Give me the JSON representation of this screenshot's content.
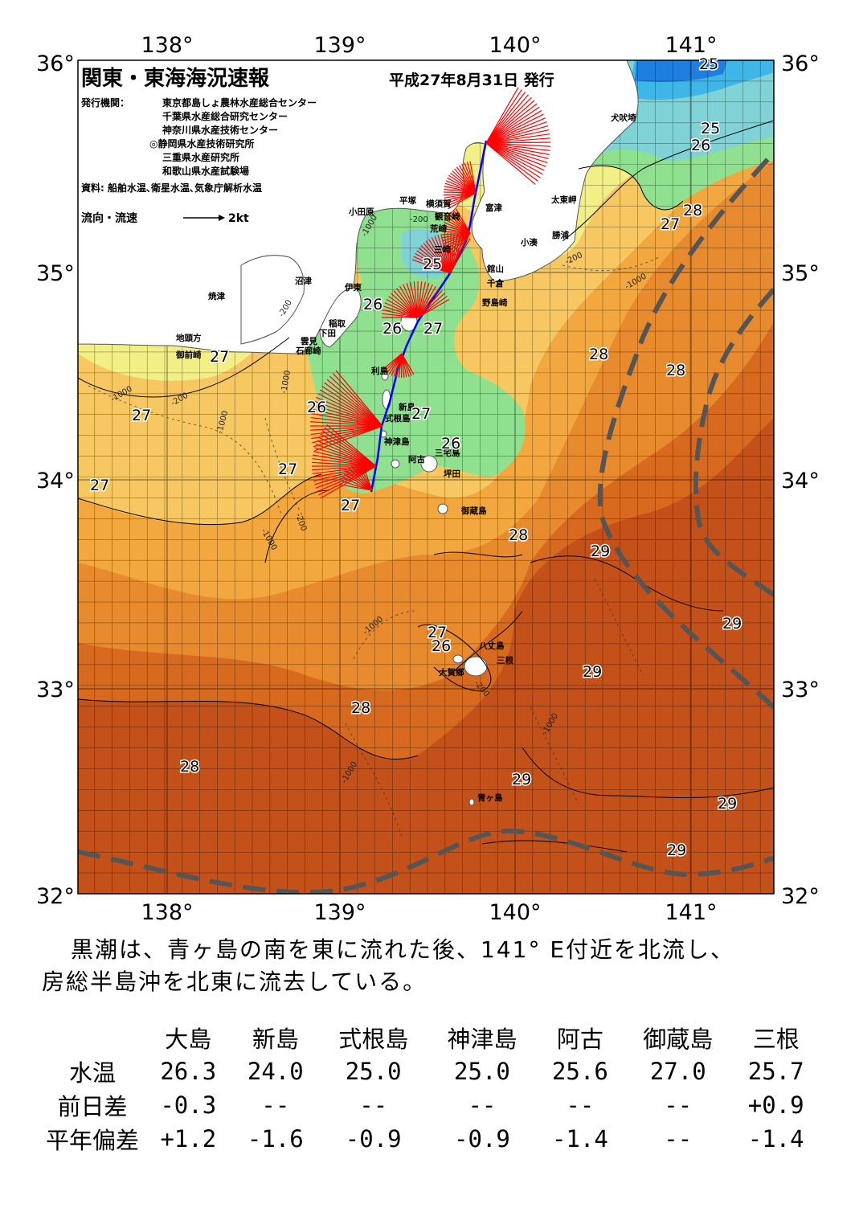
{
  "title": "関東・東海海況速報",
  "date": "平成27年8月31日 発行",
  "publisher": {
    "label": "発行機関：",
    "orgs": [
      "東京都島しょ農林水産総合センター",
      "千葉県水産総合研究センター",
      "神奈川県水産技術センター",
      "◎静岡県水産技術研究所",
      "三重県水産研究所",
      "和歌山県水産試験場"
    ]
  },
  "source": "資料: 船舶水温､衛星水温､気象庁解析水温",
  "legend": {
    "label": "流向・流速",
    "scale": "2kt"
  },
  "axes": {
    "lon": [
      "138°",
      "139°",
      "140°",
      "141°"
    ],
    "lat": [
      "36°",
      "35°",
      "34°",
      "33°",
      "32°"
    ]
  },
  "colors": {
    "sst_23": "#1f7fe0",
    "sst_24": "#3fb6e8",
    "sst_25": "#7fd3d6",
    "sst_26": "#8fe08f",
    "sst_27": "#f2ef86",
    "sst_27_5": "#f7c861",
    "sst_28": "#f2a83e",
    "sst_28_5": "#e88a2e",
    "sst_29": "#d76a1e",
    "sst_29_5": "#c4501a",
    "land": "#ffffff",
    "kuroshio": "#555555",
    "current_vector": "#ff0000",
    "track": "#0000ff"
  },
  "place_names": [
    "犬吠埼",
    "太東岬",
    "勝浦",
    "小湊",
    "富津",
    "館山",
    "千倉",
    "野島崎",
    "横須賀",
    "観音崎",
    "三崎",
    "平塚",
    "荒崎",
    "小田原",
    "沼津",
    "伊東",
    "焼津",
    "稲取",
    "下田",
    "雲見",
    "石廊崎",
    "地頭方",
    "御前崎",
    "利島",
    "新島",
    "式根島",
    "神津島",
    "三宅島",
    "坪田",
    "阿古",
    "御蔵島",
    "八丈島",
    "三根",
    "大賀郷",
    "青ヶ島"
  ],
  "temp_labels": [
    "25",
    "25",
    "26",
    "27",
    "28",
    "25",
    "26",
    "26",
    "27",
    "28",
    "28",
    "27",
    "26",
    "27",
    "26",
    "27",
    "27",
    "27",
    "27",
    "28",
    "29",
    "29",
    "27",
    "26",
    "29",
    "28",
    "28",
    "29",
    "29",
    "29"
  ],
  "depth_labels": [
    "-200",
    "-1000",
    "-200",
    "-1000",
    "-200",
    "-1000",
    "-200",
    "-1000",
    "-200",
    "-1000",
    "-1000",
    "-1000",
    "-1000",
    "-200",
    "-1000"
  ],
  "summary": [
    "黒潮は、青ヶ島の南を東に流れた後、141° E付近を北流し、",
    "房総半島沖を北東に流去している。"
  ],
  "table": {
    "stations": [
      "大島",
      "新島",
      "式根島",
      "神津島",
      "阿古",
      "御蔵島",
      "三根"
    ],
    "rows": [
      {
        "label": "水温",
        "values": [
          "26.3",
          "24.0",
          "25.0",
          "25.0",
          "25.6",
          "27.0",
          "25.7"
        ]
      },
      {
        "label": "前日差",
        "values": [
          "-0.3",
          "--",
          "--",
          "--",
          "--",
          "--",
          "+0.9"
        ]
      },
      {
        "label": "平年偏差",
        "values": [
          "+1.2",
          "-1.6",
          "-0.9",
          "-0.9",
          "-1.4",
          "--",
          "-1.4"
        ]
      }
    ]
  }
}
